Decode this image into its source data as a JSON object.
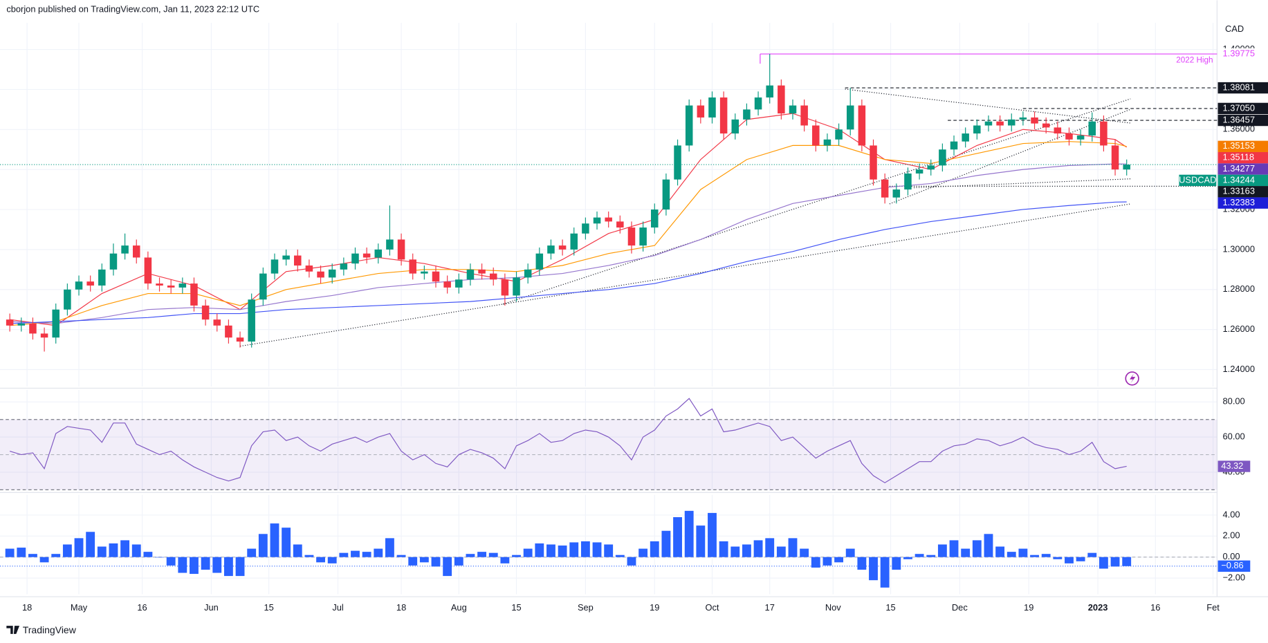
{
  "header": {
    "text": "cborjon published on TradingView.com, Jan 11, 2023 22:12 UTC"
  },
  "footer": {
    "text": "TradingView"
  },
  "chart_data": [
    {
      "type": "candlestick",
      "currency": "CAD",
      "symbol": "USDCAD",
      "up_color": "#089981",
      "down_color": "#f23645",
      "last_label": "1.34244",
      "last_color": "#089981",
      "xlim": [
        -1.7,
        209.7
      ],
      "xticks": [
        {
          "value": 3,
          "label": "18"
        },
        {
          "value": 12,
          "label": "May"
        },
        {
          "value": 23,
          "label": "16"
        },
        {
          "value": 35,
          "label": "Jun"
        },
        {
          "value": 45,
          "label": "15"
        },
        {
          "value": 57,
          "label": "Jul"
        },
        {
          "value": 68,
          "label": "18"
        },
        {
          "value": 78,
          "label": "Aug"
        },
        {
          "value": 88,
          "label": "15"
        },
        {
          "value": 100,
          "label": "Sep"
        },
        {
          "value": 112,
          "label": "19"
        },
        {
          "value": 122,
          "label": "Oct"
        },
        {
          "value": 132,
          "label": "17"
        },
        {
          "value": 143,
          "label": "Nov"
        },
        {
          "value": 153,
          "label": "15"
        },
        {
          "value": 165,
          "label": "Dec"
        },
        {
          "value": 177,
          "label": "19"
        },
        {
          "value": 189,
          "label": "2023"
        },
        {
          "value": 199,
          "label": "16"
        },
        {
          "value": 209,
          "label": "Fet"
        }
      ],
      "ylim": [
        1.2315,
        1.4133
      ],
      "yticks": [
        {
          "value": 1.24,
          "label": "1.24000"
        },
        {
          "value": 1.26,
          "label": "1.26000"
        },
        {
          "value": 1.28,
          "label": "1.28000"
        },
        {
          "value": 1.3,
          "label": "1.30000"
        },
        {
          "value": 1.32,
          "label": "1.32000"
        },
        {
          "value": 1.34,
          "label": "1.34000"
        },
        {
          "value": 1.36,
          "label": "1.36000"
        },
        {
          "value": 1.38,
          "label": "1.38000"
        },
        {
          "value": 1.4,
          "label": "1.40000"
        }
      ],
      "x": [
        0,
        2,
        4,
        6,
        8,
        10,
        12,
        14,
        16,
        18,
        20,
        22,
        24,
        26,
        28,
        30,
        32,
        34,
        36,
        38,
        40,
        42,
        44,
        46,
        48,
        50,
        52,
        54,
        56,
        58,
        60,
        62,
        64,
        66,
        68,
        70,
        72,
        74,
        76,
        78,
        80,
        82,
        84,
        86,
        88,
        90,
        92,
        94,
        96,
        98,
        100,
        102,
        104,
        106,
        108,
        110,
        112,
        114,
        116,
        118,
        120,
        122,
        124,
        126,
        128,
        130,
        132,
        134,
        136,
        138,
        140,
        142,
        144,
        146,
        148,
        150,
        152,
        154,
        156,
        158,
        160,
        162,
        164,
        166,
        168,
        170,
        172,
        174,
        176,
        178,
        180,
        182,
        184,
        186,
        188,
        190,
        192,
        194
      ],
      "candles": [
        [
          1.265,
          1.268,
          1.259,
          1.262
        ],
        [
          1.262,
          1.266,
          1.259,
          1.263
        ],
        [
          1.263,
          1.266,
          1.255,
          1.258
        ],
        [
          1.258,
          1.261,
          1.249,
          1.256
        ],
        [
          1.256,
          1.273,
          1.253,
          1.27
        ],
        [
          1.27,
          1.283,
          1.267,
          1.28
        ],
        [
          1.28,
          1.287,
          1.277,
          1.284
        ],
        [
          1.284,
          1.287,
          1.279,
          1.282
        ],
        [
          1.282,
          1.293,
          1.279,
          1.29
        ],
        [
          1.29,
          1.303,
          1.287,
          1.298
        ],
        [
          1.298,
          1.308,
          1.295,
          1.302
        ],
        [
          1.302,
          1.305,
          1.293,
          1.296
        ],
        [
          1.296,
          1.299,
          1.28,
          1.283
        ],
        [
          1.283,
          1.286,
          1.279,
          1.282
        ],
        [
          1.282,
          1.285,
          1.278,
          1.281
        ],
        [
          1.281,
          1.286,
          1.278,
          1.283
        ],
        [
          1.283,
          1.286,
          1.269,
          1.272
        ],
        [
          1.272,
          1.275,
          1.262,
          1.265
        ],
        [
          1.265,
          1.268,
          1.259,
          1.262
        ],
        [
          1.262,
          1.265,
          1.253,
          1.256
        ],
        [
          1.256,
          1.259,
          1.251,
          1.254
        ],
        [
          1.254,
          1.278,
          1.251,
          1.275
        ],
        [
          1.275,
          1.291,
          1.272,
          1.288
        ],
        [
          1.288,
          1.298,
          1.285,
          1.295
        ],
        [
          1.295,
          1.3,
          1.292,
          1.297
        ],
        [
          1.297,
          1.3,
          1.289,
          1.292
        ],
        [
          1.292,
          1.295,
          1.286,
          1.289
        ],
        [
          1.289,
          1.292,
          1.283,
          1.286
        ],
        [
          1.286,
          1.293,
          1.283,
          1.29
        ],
        [
          1.29,
          1.296,
          1.287,
          1.293
        ],
        [
          1.293,
          1.301,
          1.29,
          1.298
        ],
        [
          1.298,
          1.301,
          1.293,
          1.296
        ],
        [
          1.296,
          1.303,
          1.293,
          1.3
        ],
        [
          1.3,
          1.322,
          1.297,
          1.305
        ],
        [
          1.305,
          1.308,
          1.292,
          1.295
        ],
        [
          1.295,
          1.298,
          1.285,
          1.288
        ],
        [
          1.288,
          1.292,
          1.285,
          1.289
        ],
        [
          1.289,
          1.292,
          1.281,
          1.284
        ],
        [
          1.284,
          1.287,
          1.278,
          1.281
        ],
        [
          1.281,
          1.288,
          1.278,
          1.285
        ],
        [
          1.285,
          1.293,
          1.282,
          1.29
        ],
        [
          1.29,
          1.293,
          1.285,
          1.288
        ],
        [
          1.288,
          1.291,
          1.282,
          1.285
        ],
        [
          1.285,
          1.288,
          1.272,
          1.277
        ],
        [
          1.277,
          1.289,
          1.274,
          1.286
        ],
        [
          1.286,
          1.293,
          1.283,
          1.29
        ],
        [
          1.29,
          1.301,
          1.287,
          1.298
        ],
        [
          1.298,
          1.305,
          1.295,
          1.302
        ],
        [
          1.302,
          1.305,
          1.297,
          1.3
        ],
        [
          1.3,
          1.311,
          1.297,
          1.308
        ],
        [
          1.308,
          1.316,
          1.305,
          1.313
        ],
        [
          1.313,
          1.319,
          1.31,
          1.316
        ],
        [
          1.316,
          1.319,
          1.311,
          1.314
        ],
        [
          1.314,
          1.317,
          1.308,
          1.311
        ],
        [
          1.311,
          1.314,
          1.298,
          1.302
        ],
        [
          1.302,
          1.314,
          1.299,
          1.311
        ],
        [
          1.311,
          1.323,
          1.308,
          1.32
        ],
        [
          1.32,
          1.338,
          1.317,
          1.335
        ],
        [
          1.335,
          1.355,
          1.332,
          1.352
        ],
        [
          1.352,
          1.375,
          1.349,
          1.372
        ],
        [
          1.372,
          1.375,
          1.363,
          1.366
        ],
        [
          1.366,
          1.379,
          1.363,
          1.376
        ],
        [
          1.376,
          1.379,
          1.355,
          1.358
        ],
        [
          1.358,
          1.368,
          1.355,
          1.365
        ],
        [
          1.365,
          1.373,
          1.362,
          1.37
        ],
        [
          1.37,
          1.379,
          1.367,
          1.376
        ],
        [
          1.376,
          1.39775,
          1.373,
          1.382
        ],
        [
          1.382,
          1.385,
          1.365,
          1.368
        ],
        [
          1.368,
          1.375,
          1.365,
          1.372
        ],
        [
          1.372,
          1.375,
          1.359,
          1.362
        ],
        [
          1.362,
          1.365,
          1.349,
          1.352
        ],
        [
          1.352,
          1.358,
          1.349,
          1.355
        ],
        [
          1.355,
          1.363,
          1.352,
          1.36
        ],
        [
          1.36,
          1.38081,
          1.357,
          1.372
        ],
        [
          1.372,
          1.375,
          1.349,
          1.352
        ],
        [
          1.352,
          1.355,
          1.332,
          1.335
        ],
        [
          1.335,
          1.338,
          1.323,
          1.326
        ],
        [
          1.326,
          1.333,
          1.323,
          1.33
        ],
        [
          1.33,
          1.341,
          1.327,
          1.338
        ],
        [
          1.338,
          1.343,
          1.335,
          1.34
        ],
        [
          1.34,
          1.345,
          1.337,
          1.342
        ],
        [
          1.342,
          1.353,
          1.339,
          1.35
        ],
        [
          1.35,
          1.357,
          1.347,
          1.354
        ],
        [
          1.354,
          1.361,
          1.351,
          1.358
        ],
        [
          1.358,
          1.365,
          1.355,
          1.362
        ],
        [
          1.362,
          1.367,
          1.359,
          1.364
        ],
        [
          1.364,
          1.367,
          1.359,
          1.362
        ],
        [
          1.362,
          1.368,
          1.359,
          1.365
        ],
        [
          1.365,
          1.369,
          1.362,
          1.366
        ],
        [
          1.366,
          1.369,
          1.36,
          1.363
        ],
        [
          1.363,
          1.366,
          1.358,
          1.361
        ],
        [
          1.361,
          1.364,
          1.355,
          1.358
        ],
        [
          1.358,
          1.361,
          1.352,
          1.355
        ],
        [
          1.355,
          1.36,
          1.352,
          1.357
        ],
        [
          1.357,
          1.3685,
          1.354,
          1.364
        ],
        [
          1.364,
          1.367,
          1.349,
          1.352
        ],
        [
          1.352,
          1.355,
          1.337,
          1.34
        ],
        [
          1.34,
          1.345,
          1.337,
          1.34244
        ]
      ],
      "overlay_x": [
        0,
        8,
        16,
        24,
        32,
        40,
        48,
        56,
        64,
        72,
        80,
        88,
        96,
        104,
        112,
        120,
        128,
        136,
        144,
        152,
        160,
        168,
        176,
        184,
        192,
        194
      ],
      "overlays": [
        {
          "color": "#f23645",
          "label_color": "#f23645",
          "last_label": "1.35118",
          "values": [
            1.265,
            1.262,
            1.278,
            1.288,
            1.282,
            1.27,
            1.289,
            1.292,
            1.296,
            1.293,
            1.288,
            1.284,
            1.295,
            1.308,
            1.315,
            1.345,
            1.365,
            1.368,
            1.36,
            1.345,
            1.34,
            1.352,
            1.36,
            1.358,
            1.355,
            1.35118
          ]
        },
        {
          "color": "#ff9800",
          "label_color": "#f57c00",
          "last_label": "1.35153",
          "values": [
            1.262,
            1.264,
            1.272,
            1.278,
            1.278,
            1.272,
            1.28,
            1.284,
            1.288,
            1.29,
            1.29,
            1.289,
            1.292,
            1.298,
            1.302,
            1.33,
            1.345,
            1.352,
            1.352,
            1.345,
            1.343,
            1.348,
            1.353,
            1.354,
            1.353,
            1.35153
          ]
        },
        {
          "color": "#9575cd",
          "label_color": "#673ab7",
          "last_label": "1.34277",
          "values": [
            1.264,
            1.263,
            1.266,
            1.27,
            1.271,
            1.27,
            1.274,
            1.277,
            1.281,
            1.283,
            1.285,
            1.286,
            1.288,
            1.292,
            1.297,
            1.305,
            1.315,
            1.323,
            1.327,
            1.331,
            1.333,
            1.337,
            1.34,
            1.342,
            1.3428,
            1.34277
          ]
        },
        {
          "color": "#3f51f5",
          "label_color": "#1e1ed8",
          "last_label": "1.32383",
          "values": [
            1.263,
            1.264,
            1.265,
            1.266,
            1.268,
            1.268,
            1.27,
            1.271,
            1.272,
            1.273,
            1.274,
            1.276,
            1.278,
            1.28,
            1.283,
            1.288,
            1.294,
            1.299,
            1.305,
            1.31,
            1.314,
            1.317,
            1.32,
            1.322,
            1.3237,
            1.32383
          ]
        }
      ],
      "levels": [
        {
          "value": 1.39775,
          "label": "1.39775",
          "color": "#e040fb",
          "note": "2022 High"
        },
        {
          "value": 1.38081,
          "label": "1.38081",
          "color": "#131722"
        },
        {
          "value": 1.3705,
          "label": "1.37050",
          "color": "#131722"
        },
        {
          "value": 1.36457,
          "label": "1.36457",
          "color": "#131722"
        },
        {
          "value": 1.33163,
          "label": "1.33163",
          "color": "#131722"
        }
      ]
    },
    {
      "type": "line",
      "color": "#7e57c2",
      "band": [
        30,
        70
      ],
      "ylim": [
        29.4,
        86.9
      ],
      "yticks": [
        {
          "value": 40,
          "label": "40.00"
        },
        {
          "value": 60,
          "label": "60.00"
        },
        {
          "value": 80,
          "label": "80.00"
        }
      ],
      "values": [
        52,
        50,
        51,
        42,
        62,
        66,
        65,
        64,
        57,
        68,
        68,
        56,
        53,
        50,
        52,
        47,
        43,
        40,
        37,
        35,
        37,
        55,
        63,
        64,
        58,
        60,
        55,
        52,
        56,
        58,
        60,
        57,
        60,
        62,
        52,
        47,
        50,
        45,
        43,
        50,
        53,
        51,
        48,
        42,
        55,
        58,
        62,
        57,
        58,
        62,
        64,
        63,
        60,
        55,
        47,
        60,
        64,
        72,
        76,
        82,
        72,
        76,
        63,
        64,
        66,
        68,
        66,
        58,
        60,
        54,
        48,
        52,
        55,
        58,
        45,
        38,
        34,
        38,
        42,
        46,
        46,
        52,
        55,
        56,
        59,
        58,
        55,
        57,
        60,
        56,
        54,
        53,
        50,
        52,
        57,
        46,
        42,
        43.32
      ],
      "last_label": "43.32"
    },
    {
      "type": "bar",
      "color": "#2962ff",
      "ylim": [
        -3.54,
        5.92
      ],
      "yticks": [
        {
          "value": 4,
          "label": "4.00"
        },
        {
          "value": 2,
          "label": "2.00"
        },
        {
          "value": 0,
          "label": "0.00"
        },
        {
          "value": -2,
          "label": "−2.00"
        }
      ],
      "values": [
        0.8,
        0.9,
        0.3,
        -0.5,
        0.3,
        1.2,
        1.8,
        2.4,
        1.0,
        1.3,
        1.6,
        1.2,
        0.5,
        0.0,
        -0.8,
        -1.5,
        -1.6,
        -1.2,
        -1.5,
        -1.8,
        -1.8,
        0.8,
        2.2,
        3.2,
        2.8,
        1.2,
        0.2,
        -0.5,
        -0.6,
        0.4,
        0.6,
        0.5,
        0.8,
        1.8,
        0.2,
        -0.8,
        -0.5,
        -0.9,
        -1.8,
        -0.8,
        0.3,
        0.5,
        0.4,
        -0.6,
        0.2,
        0.8,
        1.3,
        1.2,
        1.1,
        1.4,
        1.5,
        1.4,
        1.2,
        0.2,
        -0.8,
        0.8,
        1.5,
        2.5,
        3.8,
        4.4,
        3.0,
        4.2,
        1.5,
        1.0,
        1.2,
        1.6,
        1.8,
        1.0,
        1.8,
        0.8,
        -1.0,
        -0.8,
        -0.5,
        0.8,
        -1.2,
        -2.2,
        -2.9,
        -1.2,
        -0.2,
        0.3,
        0.2,
        1.2,
        1.6,
        0.8,
        1.6,
        2.2,
        1.0,
        0.5,
        0.8,
        0.2,
        0.3,
        -0.2,
        -0.6,
        -0.4,
        0.4,
        -1.1,
        -0.9,
        -0.86
      ],
      "last_label": "−0.86"
    }
  ]
}
